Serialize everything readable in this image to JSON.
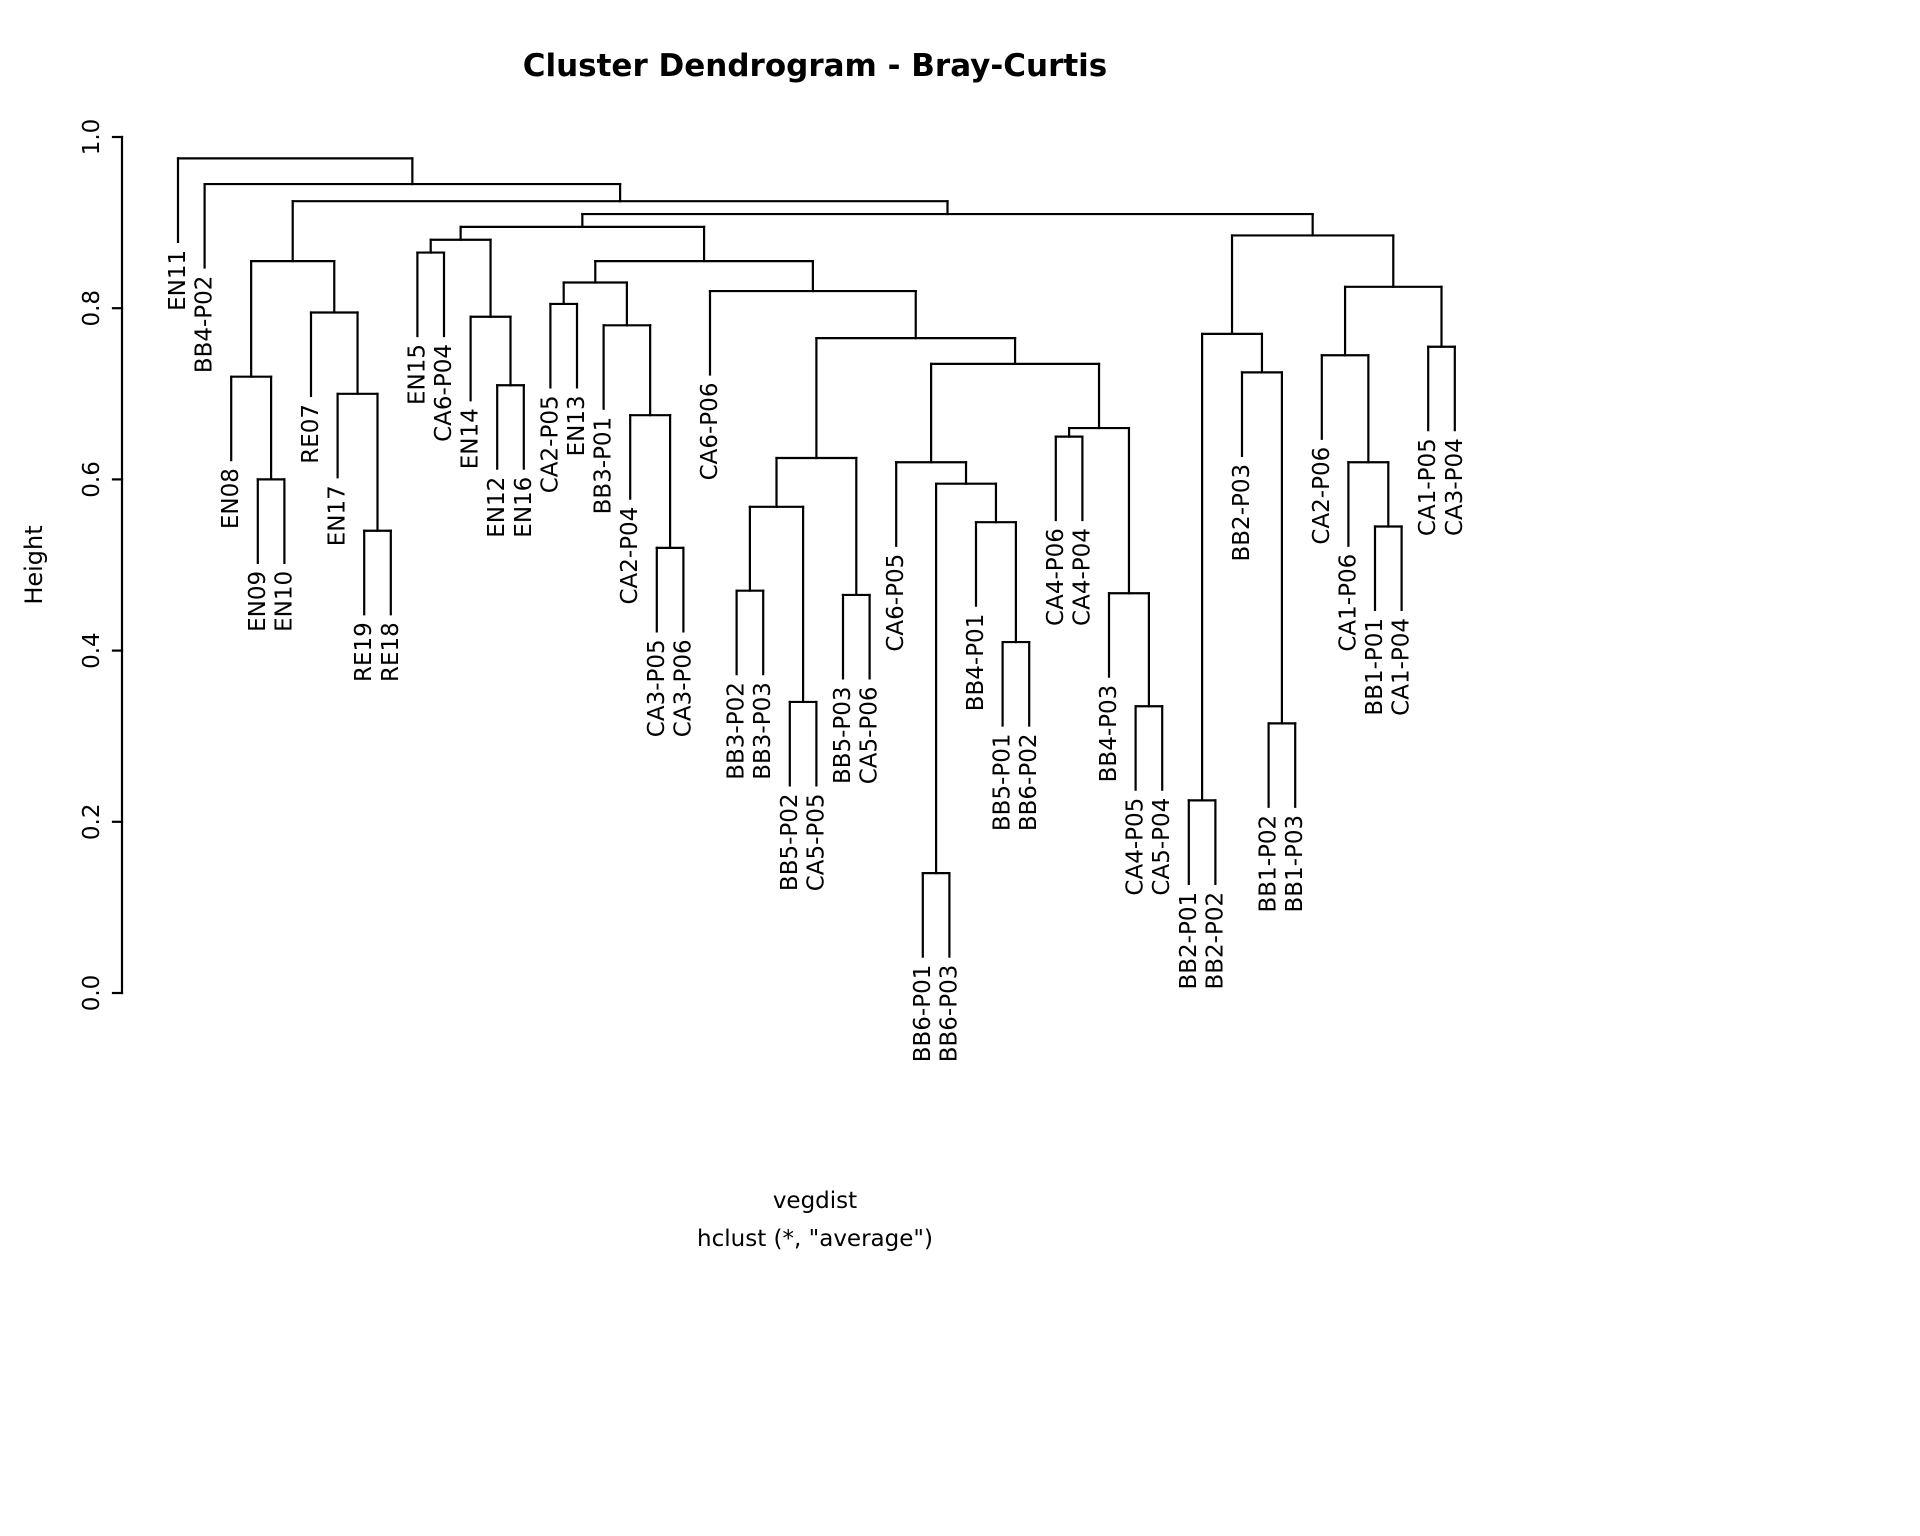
{
  "colors": {
    "foreground": "#000000",
    "background": "#ffffff"
  },
  "chart_data": {
    "type": "dendrogram",
    "title": "Cluster Dendrogram - Bray-Curtis",
    "ylabel": "Height",
    "xlabel": "vegdist",
    "sub_xlabel": "hclust (*, \"average\")",
    "ylim": [
      0,
      1
    ],
    "y_ticks": [
      {
        "value": 0.0,
        "label": "0.0"
      },
      {
        "value": 0.2,
        "label": "0.2"
      },
      {
        "value": 0.4,
        "label": "0.4"
      },
      {
        "value": 0.6,
        "label": "0.6"
      },
      {
        "value": 0.8,
        "label": "0.8"
      },
      {
        "value": 1.0,
        "label": "1.0"
      }
    ],
    "hang": 0.0975,
    "n_leaves": 49,
    "leaf_order": [
      "EN11",
      "BB4-P02",
      "EN08",
      "EN09",
      "EN10",
      "RE07",
      "EN17",
      "RE19",
      "RE18",
      "EN15",
      "CA6-P04",
      "EN14",
      "EN12",
      "EN16",
      "CA2-P05",
      "EN13",
      "BB3-P01",
      "CA2-P04",
      "CA3-P05",
      "CA3-P06",
      "CA6-P06",
      "BB3-P02",
      "BB3-P03",
      "BB5-P02",
      "CA5-P05",
      "BB5-P03",
      "CA5-P06",
      "CA6-P05",
      "BB6-P01",
      "BB6-P03",
      "BB4-P01",
      "BB5-P01",
      "BB6-P02",
      "CA4-P06",
      "CA4-P04",
      "BB4-P03",
      "CA4-P05",
      "CA5-P04",
      "BB2-P01",
      "BB2-P02",
      "BB2-P03",
      "BB1-P02",
      "BB1-P03",
      "CA2-P06",
      "CA1-P06",
      "BB1-P01",
      "CA1-P04",
      "CA1-P05",
      "CA3-P04"
    ],
    "tree": {
      "h": 0.975,
      "c": [
        {
          "label": "EN11"
        },
        {
          "h": 0.945,
          "c": [
            {
              "label": "BB4-P02"
            },
            {
              "h": 0.925,
              "c": [
                {
                  "h": 0.855,
                  "c": [
                    {
                      "h": 0.72,
                      "c": [
                        {
                          "label": "EN08"
                        },
                        {
                          "h": 0.6,
                          "c": [
                            {
                              "label": "EN09"
                            },
                            {
                              "label": "EN10"
                            }
                          ]
                        }
                      ]
                    },
                    {
                      "h": 0.795,
                      "c": [
                        {
                          "label": "RE07"
                        },
                        {
                          "h": 0.7,
                          "c": [
                            {
                              "label": "EN17"
                            },
                            {
                              "h": 0.54,
                              "c": [
                                {
                                  "label": "RE19"
                                },
                                {
                                  "label": "RE18"
                                }
                              ]
                            }
                          ]
                        }
                      ]
                    }
                  ]
                },
                {
                  "h": 0.91,
                  "c": [
                    {
                      "h": 0.895,
                      "c": [
                        {
                          "h": 0.88,
                          "c": [
                            {
                              "h": 0.865,
                              "c": [
                                {
                                  "label": "EN15"
                                },
                                {
                                  "label": "CA6-P04"
                                }
                              ]
                            },
                            {
                              "h": 0.79,
                              "c": [
                                {
                                  "label": "EN14"
                                },
                                {
                                  "h": 0.71,
                                  "c": [
                                    {
                                      "label": "EN12"
                                    },
                                    {
                                      "label": "EN16"
                                    }
                                  ]
                                }
                              ]
                            }
                          ]
                        },
                        {
                          "h": 0.855,
                          "c": [
                            {
                              "h": 0.83,
                              "c": [
                                {
                                  "h": 0.805,
                                  "c": [
                                    {
                                      "label": "CA2-P05"
                                    },
                                    {
                                      "label": "EN13"
                                    }
                                  ]
                                },
                                {
                                  "h": 0.78,
                                  "c": [
                                    {
                                      "label": "BB3-P01"
                                    },
                                    {
                                      "h": 0.675,
                                      "c": [
                                        {
                                          "label": "CA2-P04"
                                        },
                                        {
                                          "h": 0.52,
                                          "c": [
                                            {
                                              "label": "CA3-P05"
                                            },
                                            {
                                              "label": "CA3-P06"
                                            }
                                          ]
                                        }
                                      ]
                                    }
                                  ]
                                }
                              ]
                            },
                            {
                              "h": 0.82,
                              "c": [
                                {
                                  "label": "CA6-P06"
                                },
                                {
                                  "h": 0.765,
                                  "c": [
                                    {
                                      "h": 0.625,
                                      "c": [
                                        {
                                          "h": 0.568,
                                          "c": [
                                            {
                                              "h": 0.47,
                                              "c": [
                                                {
                                                  "label": "BB3-P02"
                                                },
                                                {
                                                  "label": "BB3-P03"
                                                }
                                              ]
                                            },
                                            {
                                              "h": 0.34,
                                              "c": [
                                                {
                                                  "label": "BB5-P02"
                                                },
                                                {
                                                  "label": "CA5-P05"
                                                }
                                              ]
                                            }
                                          ]
                                        },
                                        {
                                          "h": 0.465,
                                          "c": [
                                            {
                                              "label": "BB5-P03"
                                            },
                                            {
                                              "label": "CA5-P06"
                                            }
                                          ]
                                        }
                                      ]
                                    },
                                    {
                                      "h": 0.735,
                                      "c": [
                                        {
                                          "h": 0.62,
                                          "c": [
                                            {
                                              "label": "CA6-P05"
                                            },
                                            {
                                              "h": 0.595,
                                              "c": [
                                                {
                                                  "h": 0.14,
                                                  "c": [
                                                    {
                                                      "label": "BB6-P01"
                                                    },
                                                    {
                                                      "label": "BB6-P03"
                                                    }
                                                  ]
                                                },
                                                {
                                                  "h": 0.55,
                                                  "c": [
                                                    {
                                                      "label": "BB4-P01"
                                                    },
                                                    {
                                                      "h": 0.41,
                                                      "c": [
                                                        {
                                                          "label": "BB5-P01"
                                                        },
                                                        {
                                                          "label": "BB6-P02"
                                                        }
                                                      ]
                                                    }
                                                  ]
                                                }
                                              ]
                                            }
                                          ]
                                        },
                                        {
                                          "h": 0.66,
                                          "c": [
                                            {
                                              "h": 0.65,
                                              "c": [
                                                {
                                                  "label": "CA4-P06"
                                                },
                                                {
                                                  "label": "CA4-P04"
                                                }
                                              ]
                                            },
                                            {
                                              "h": 0.467,
                                              "c": [
                                                {
                                                  "label": "BB4-P03"
                                                },
                                                {
                                                  "h": 0.335,
                                                  "c": [
                                                    {
                                                      "label": "CA4-P05"
                                                    },
                                                    {
                                                      "label": "CA5-P04"
                                                    }
                                                  ]
                                                }
                                              ]
                                            }
                                          ]
                                        }
                                      ]
                                    }
                                  ]
                                }
                              ]
                            }
                          ]
                        }
                      ]
                    },
                    {
                      "h": 0.885,
                      "c": [
                        {
                          "h": 0.77,
                          "c": [
                            {
                              "h": 0.225,
                              "c": [
                                {
                                  "label": "BB2-P01"
                                },
                                {
                                  "label": "BB2-P02"
                                }
                              ]
                            },
                            {
                              "h": 0.725,
                              "c": [
                                {
                                  "label": "BB2-P03"
                                },
                                {
                                  "h": 0.315,
                                  "c": [
                                    {
                                      "label": "BB1-P02"
                                    },
                                    {
                                      "label": "BB1-P03"
                                    }
                                  ]
                                }
                              ]
                            }
                          ]
                        },
                        {
                          "h": 0.825,
                          "c": [
                            {
                              "h": 0.745,
                              "c": [
                                {
                                  "label": "CA2-P06"
                                },
                                {
                                  "h": 0.62,
                                  "c": [
                                    {
                                      "label": "CA1-P06"
                                    },
                                    {
                                      "h": 0.545,
                                      "c": [
                                        {
                                          "label": "BB1-P01"
                                        },
                                        {
                                          "label": "CA1-P04"
                                        }
                                      ]
                                    }
                                  ]
                                }
                              ]
                            },
                            {
                              "h": 0.755,
                              "c": [
                                {
                                  "label": "CA1-P05"
                                },
                                {
                                  "label": "CA3-P04"
                                }
                              ]
                            }
                          ]
                        }
                      ]
                    }
                  ]
                }
              ]
            }
          ]
        }
      ]
    }
  }
}
